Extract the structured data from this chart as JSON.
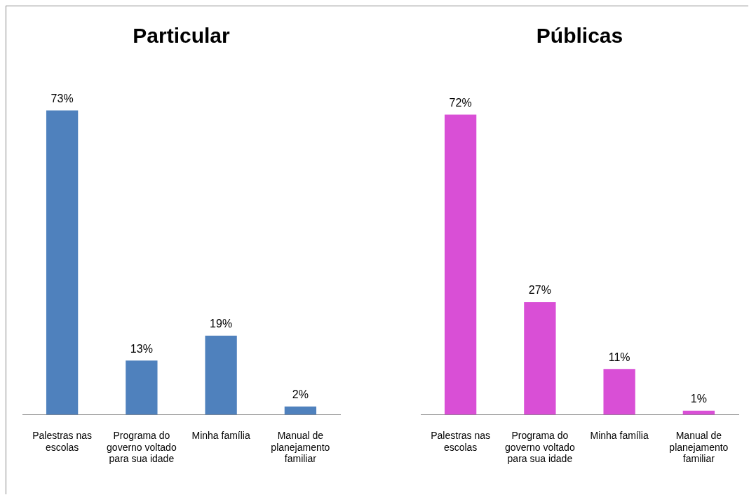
{
  "chart_data": [
    {
      "type": "bar",
      "title": "Particular",
      "categories": [
        "Palestras nas escolas",
        "Programa do governo voltado para sua idade",
        "Minha família",
        "Manual de planejamento familiar"
      ],
      "values": [
        73,
        13,
        19,
        2
      ],
      "value_labels": [
        "73%",
        "13%",
        "19%",
        "2%"
      ],
      "color": "#4f81bd",
      "grid": false,
      "legend": false,
      "tick_labels": "x"
    },
    {
      "type": "bar",
      "title": "Públicas",
      "categories": [
        "Palestras nas escolas",
        "Programa do governo voltado para sua idade",
        "Minha família",
        "Manual de planejamento familiar"
      ],
      "values": [
        72,
        27,
        11,
        1
      ],
      "value_labels": [
        "72%",
        "27%",
        "11%",
        "1%"
      ],
      "color": "#d94fd6",
      "grid": false,
      "legend": false,
      "tick_labels": "x"
    }
  ]
}
